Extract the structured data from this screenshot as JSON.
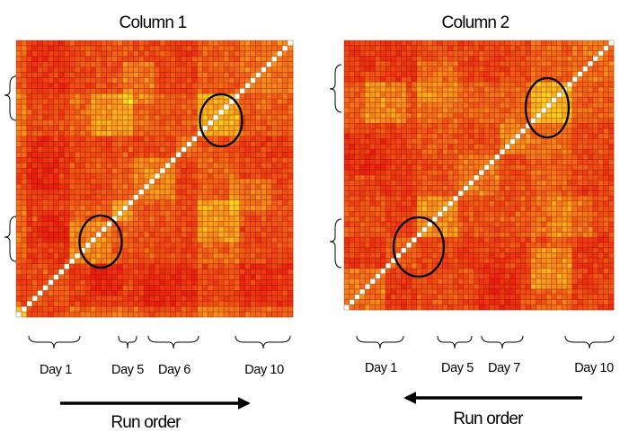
{
  "chart_data": [
    {
      "type": "heatmap",
      "title": "Column 1",
      "cells_per_side": 52,
      "diagonal_color": "#fffff0",
      "color_scale": [
        "#ec1c0c",
        "#f23d10",
        "#f66716",
        "#fa951b",
        "#fdc21f",
        "#fff01d"
      ],
      "blocks": [
        {
          "from": 0,
          "to": 2,
          "level": 0.55
        },
        {
          "from": 2,
          "to": 10,
          "level": 0.12
        },
        {
          "from": 10,
          "to": 18,
          "level": 0.38
        },
        {
          "from": 18,
          "to": 22,
          "level": 0.48
        },
        {
          "from": 22,
          "to": 30,
          "level": 0.35
        },
        {
          "from": 30,
          "to": 34,
          "level": 0.25
        },
        {
          "from": 34,
          "to": 42,
          "level": 0.55
        },
        {
          "from": 42,
          "to": 52,
          "level": 0.3
        }
      ],
      "pair_bias": [
        {
          "a": 34,
          "b": 42,
          "c": 14,
          "d": 22,
          "delta": 0.22
        },
        {
          "a": 20,
          "b": 26,
          "c": 40,
          "d": 48,
          "delta": 0.2
        },
        {
          "a": 4,
          "b": 10,
          "c": 14,
          "d": 20,
          "delta": -0.15
        },
        {
          "a": 24,
          "b": 30,
          "c": 0,
          "d": 8,
          "delta": -0.12
        }
      ],
      "day_labels": [
        "Day 1",
        "Day 5",
        "Day 6",
        "Day 10"
      ],
      "annotation": "Run order",
      "arrow_direction": "right",
      "seed": 7
    },
    {
      "type": "heatmap",
      "title": "Column 2",
      "cells_per_side": 52,
      "diagonal_color": "#fffff0",
      "color_scale": [
        "#ec1c0c",
        "#f23d10",
        "#f66716",
        "#fa951b",
        "#fdc21f",
        "#fff01d"
      ],
      "blocks": [
        {
          "from": 0,
          "to": 8,
          "level": 0.3
        },
        {
          "from": 8,
          "to": 14,
          "level": 0.18
        },
        {
          "from": 14,
          "to": 22,
          "level": 0.42
        },
        {
          "from": 22,
          "to": 30,
          "level": 0.32
        },
        {
          "from": 30,
          "to": 36,
          "level": 0.38
        },
        {
          "from": 36,
          "to": 44,
          "level": 0.58
        },
        {
          "from": 44,
          "to": 52,
          "level": 0.28
        }
      ],
      "pair_bias": [
        {
          "a": 36,
          "b": 44,
          "c": 4,
          "d": 12,
          "delta": 0.22
        },
        {
          "a": 14,
          "b": 22,
          "c": 40,
          "d": 48,
          "delta": 0.15
        },
        {
          "a": 0,
          "b": 8,
          "c": 26,
          "d": 34,
          "delta": -0.15
        }
      ],
      "day_labels": [
        "Day 1",
        "Day 5",
        "Day 7",
        "Day 10"
      ],
      "annotation": "Run order",
      "arrow_direction": "left",
      "seed": 19
    }
  ]
}
